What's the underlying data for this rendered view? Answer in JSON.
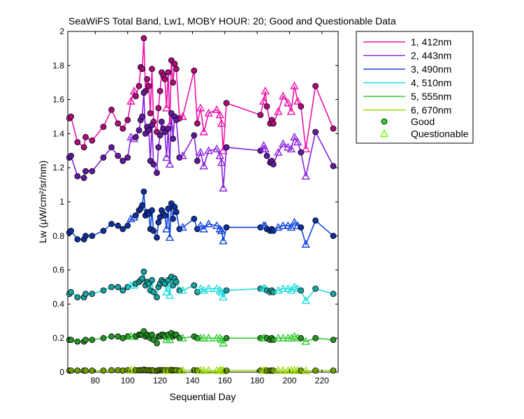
{
  "chart_data": {
    "type": "line",
    "title": "SeaWiFS Total Band,  Lw1, MOBY HOUR: 20;  Good and Questionable Data",
    "xlabel": "Sequential Day",
    "ylabel": "Lw (μW/cm²/sr/nm)",
    "xlim": [
      63,
      230
    ],
    "ylim": [
      0,
      2
    ],
    "xticks": [
      80,
      100,
      120,
      140,
      160,
      180,
      200,
      220
    ],
    "yticks": [
      0,
      0.2,
      0.4,
      0.6,
      0.8,
      1,
      1.2,
      1.4,
      1.6,
      1.8,
      2
    ],
    "ytick_labels": [
      "0",
      "0.2",
      "0.4",
      "0.6",
      "0.8",
      "1",
      "1.2",
      "1.4",
      "1.6",
      "1.8",
      "2"
    ],
    "grid": false,
    "legend_position": "outside-top-right",
    "legend_markers": [
      {
        "name": "Good",
        "marker": "circle",
        "color": "#33cc33"
      },
      {
        "name": "Questionable",
        "marker": "triangle",
        "color": "#66ff00"
      }
    ],
    "x": [
      64,
      65,
      69,
      73,
      74,
      78,
      85,
      90,
      94,
      97,
      100,
      102,
      104,
      105,
      107,
      108,
      109,
      110,
      111,
      112,
      113,
      114,
      115,
      116,
      118,
      119,
      120,
      121,
      122,
      123,
      124,
      125,
      126,
      127,
      128,
      129,
      130,
      132,
      134,
      141,
      143,
      145,
      147,
      150,
      155,
      157,
      158,
      159,
      161,
      182,
      184,
      185,
      186,
      188,
      189,
      190,
      193,
      196,
      199,
      201,
      203,
      205,
      207,
      210,
      216,
      227
    ],
    "quality": [
      "G",
      "G",
      "G",
      "G",
      "G",
      "G",
      "G",
      "G",
      "G",
      "G",
      "G",
      "Q",
      "Q",
      "G",
      "G",
      "G",
      "G",
      "G",
      "G",
      "G",
      "G",
      "G",
      "G",
      "G",
      "G",
      "G",
      "G",
      "G",
      "G",
      "G",
      "Q",
      "G",
      "Q",
      "G",
      "G",
      "G",
      "G",
      "G",
      "Q",
      "G",
      "G",
      "Q",
      "Q",
      "Q",
      "Q",
      "Q",
      "Q",
      "Q",
      "G",
      "G",
      "Q",
      "Q",
      "G",
      "G",
      "G",
      "G",
      "Q",
      "Q",
      "Q",
      "Q",
      "Q",
      "Q",
      "G",
      "Q",
      "G",
      "G"
    ],
    "series": [
      {
        "name": "1, 412nm",
        "color": "#ee11aa",
        "values": [
          1.49,
          1.5,
          1.35,
          1.32,
          1.38,
          1.36,
          1.44,
          1.54,
          1.46,
          1.43,
          1.48,
          1.59,
          1.65,
          1.62,
          1.68,
          1.79,
          1.78,
          1.96,
          1.65,
          1.72,
          1.68,
          1.52,
          1.78,
          1.47,
          1.41,
          1.55,
          1.65,
          1.76,
          1.74,
          1.72,
          1.55,
          1.76,
          1.45,
          1.83,
          1.7,
          1.81,
          1.78,
          1.49,
          1.5,
          1.77,
          1.46,
          1.55,
          1.41,
          1.52,
          1.54,
          1.51,
          1.46,
          1.3,
          1.58,
          1.51,
          1.59,
          1.65,
          1.56,
          1.46,
          1.48,
          1.46,
          1.53,
          1.62,
          1.58,
          1.53,
          1.68,
          1.59,
          1.56,
          1.31,
          1.68,
          1.43
        ]
      },
      {
        "name": "2, 443nm",
        "color": "#8822dd",
        "values": [
          1.26,
          1.27,
          1.15,
          1.14,
          1.18,
          1.18,
          1.26,
          1.32,
          1.27,
          1.24,
          1.26,
          1.38,
          1.37,
          1.38,
          1.42,
          1.48,
          1.5,
          1.64,
          1.4,
          1.44,
          1.42,
          1.24,
          1.45,
          1.22,
          1.17,
          1.32,
          1.39,
          1.47,
          1.43,
          1.41,
          1.26,
          1.43,
          1.22,
          1.52,
          1.37,
          1.5,
          1.48,
          1.26,
          1.27,
          1.39,
          1.24,
          1.29,
          1.21,
          1.3,
          1.31,
          1.27,
          1.23,
          1.08,
          1.32,
          1.3,
          1.33,
          1.31,
          1.27,
          1.23,
          1.24,
          1.22,
          1.29,
          1.34,
          1.32,
          1.31,
          1.38,
          1.35,
          1.29,
          1.15,
          1.41,
          1.21
        ]
      },
      {
        "name": "3, 490nm",
        "color": "#1144dd",
        "values": [
          0.82,
          0.83,
          0.78,
          0.78,
          0.8,
          0.8,
          0.83,
          0.87,
          0.86,
          0.84,
          0.86,
          0.9,
          0.91,
          0.92,
          0.95,
          0.96,
          0.98,
          1.06,
          0.92,
          0.94,
          0.93,
          0.84,
          0.95,
          0.83,
          0.79,
          0.88,
          0.91,
          0.95,
          0.93,
          0.92,
          0.84,
          0.96,
          0.79,
          0.99,
          0.9,
          0.97,
          0.94,
          0.84,
          0.85,
          0.9,
          0.84,
          0.86,
          0.84,
          0.87,
          0.86,
          0.84,
          0.83,
          0.77,
          0.85,
          0.85,
          0.86,
          0.86,
          0.84,
          0.83,
          0.84,
          0.83,
          0.85,
          0.86,
          0.86,
          0.85,
          0.88,
          0.86,
          0.85,
          0.75,
          0.89,
          0.8
        ]
      },
      {
        "name": "4, 510nm",
        "color": "#22dddd",
        "values": [
          0.46,
          0.47,
          0.44,
          0.44,
          0.46,
          0.46,
          0.48,
          0.5,
          0.5,
          0.48,
          0.5,
          0.51,
          0.51,
          0.52,
          0.53,
          0.54,
          0.55,
          0.59,
          0.51,
          0.53,
          0.52,
          0.48,
          0.54,
          0.47,
          0.44,
          0.5,
          0.52,
          0.54,
          0.53,
          0.52,
          0.47,
          0.54,
          0.45,
          0.56,
          0.51,
          0.55,
          0.53,
          0.48,
          0.48,
          0.51,
          0.47,
          0.49,
          0.48,
          0.49,
          0.49,
          0.48,
          0.47,
          0.44,
          0.48,
          0.49,
          0.49,
          0.49,
          0.48,
          0.47,
          0.48,
          0.47,
          0.48,
          0.49,
          0.49,
          0.48,
          0.5,
          0.49,
          0.48,
          0.42,
          0.49,
          0.46
        ]
      },
      {
        "name": "5, 555nm",
        "color": "#33cc33",
        "values": [
          0.19,
          0.19,
          0.18,
          0.18,
          0.19,
          0.19,
          0.2,
          0.21,
          0.21,
          0.2,
          0.21,
          0.21,
          0.21,
          0.21,
          0.22,
          0.22,
          0.22,
          0.24,
          0.21,
          0.22,
          0.21,
          0.2,
          0.22,
          0.19,
          0.17,
          0.21,
          0.21,
          0.22,
          0.22,
          0.21,
          0.19,
          0.22,
          0.19,
          0.23,
          0.21,
          0.22,
          0.22,
          0.2,
          0.2,
          0.21,
          0.2,
          0.2,
          0.2,
          0.2,
          0.2,
          0.2,
          0.19,
          0.17,
          0.2,
          0.2,
          0.2,
          0.2,
          0.2,
          0.19,
          0.2,
          0.19,
          0.2,
          0.2,
          0.2,
          0.2,
          0.21,
          0.2,
          0.2,
          0.18,
          0.2,
          0.19
        ]
      },
      {
        "name": "6, 670nm",
        "color": "#99dd00",
        "values": [
          0.01,
          0.01,
          0.01,
          0.01,
          0.01,
          0.01,
          0.01,
          0.012,
          0.012,
          0.01,
          0.012,
          0.012,
          0.012,
          0.012,
          0.012,
          0.012,
          0.012,
          0.015,
          0.012,
          0.012,
          0.012,
          0.01,
          0.012,
          0.01,
          0.008,
          0.012,
          0.012,
          0.012,
          0.012,
          0.012,
          0.01,
          0.012,
          0.01,
          0.013,
          0.012,
          0.012,
          0.012,
          0.01,
          0.01,
          0.012,
          0.01,
          0.01,
          0.01,
          0.01,
          0.01,
          0.01,
          0.01,
          0.008,
          0.01,
          0.01,
          0.01,
          0.01,
          0.01,
          0.01,
          0.01,
          0.01,
          0.01,
          0.01,
          0.01,
          0.01,
          0.012,
          0.01,
          0.01,
          0.008,
          0.01,
          0.01
        ]
      }
    ]
  }
}
